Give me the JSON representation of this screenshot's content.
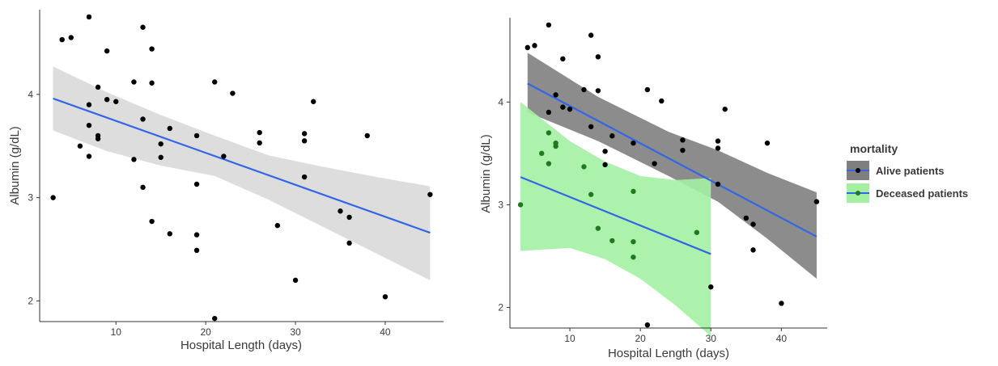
{
  "chart_data": [
    {
      "type": "scatter",
      "title": "",
      "xlabel": "Hospital Length (days)",
      "ylabel": "Albumin (g/dL)",
      "xlim": [
        1.5,
        46.5
      ],
      "ylim": [
        1.8,
        4.82
      ],
      "xticks": [
        10,
        20,
        30,
        40
      ],
      "yticks": [
        2,
        3,
        4
      ],
      "grid": false,
      "points": [
        [
          3,
          3.0
        ],
        [
          4,
          4.53
        ],
        [
          5,
          4.55
        ],
        [
          6,
          3.5
        ],
        [
          7,
          4.75
        ],
        [
          7,
          3.9
        ],
        [
          7,
          3.7
        ],
        [
          7,
          3.4
        ],
        [
          8,
          4.07
        ],
        [
          8,
          3.6
        ],
        [
          8,
          3.57
        ],
        [
          9,
          4.42
        ],
        [
          9,
          3.95
        ],
        [
          10,
          3.93
        ],
        [
          12,
          4.12
        ],
        [
          12,
          3.37
        ],
        [
          13,
          4.65
        ],
        [
          13,
          3.76
        ],
        [
          13,
          3.1
        ],
        [
          14,
          4.44
        ],
        [
          14,
          4.11
        ],
        [
          14,
          2.77
        ],
        [
          15,
          3.52
        ],
        [
          15,
          3.39
        ],
        [
          16,
          3.67
        ],
        [
          16,
          2.65
        ],
        [
          19,
          3.6
        ],
        [
          19,
          3.13
        ],
        [
          19,
          2.64
        ],
        [
          19,
          2.49
        ],
        [
          21,
          4.12
        ],
        [
          21,
          1.83
        ],
        [
          22,
          3.4
        ],
        [
          23,
          4.01
        ],
        [
          26,
          3.63
        ],
        [
          26,
          3.53
        ],
        [
          28,
          2.73
        ],
        [
          30,
          2.2
        ],
        [
          31,
          3.62
        ],
        [
          31,
          3.55
        ],
        [
          31,
          3.2
        ],
        [
          32,
          3.93
        ],
        [
          35,
          2.87
        ],
        [
          36,
          2.81
        ],
        [
          36,
          2.56
        ],
        [
          38,
          3.6
        ],
        [
          40,
          2.04
        ],
        [
          45,
          3.03
        ]
      ],
      "fit": {
        "x": [
          3,
          45
        ],
        "y": [
          3.96,
          2.66
        ],
        "ci_lower": [
          3.65,
          3.45,
          3.31,
          3.21,
          2.98,
          2.72,
          2.46,
          2.2
        ],
        "ci_upper": [
          4.27,
          4.02,
          3.8,
          3.6,
          3.41,
          3.3,
          3.2,
          3.11
        ],
        "ci_x": [
          3,
          9,
          15,
          21,
          27,
          33,
          39,
          45
        ],
        "line_color": "#3366e6",
        "band_color": "#d9d9d9"
      },
      "point_color": "#000000"
    },
    {
      "type": "scatter",
      "title": "",
      "xlabel": "Hospital Length (days)",
      "ylabel": "Albumin (g/dL)",
      "xlim": [
        1.5,
        46.5
      ],
      "ylim": [
        1.8,
        4.82
      ],
      "xticks": [
        10,
        20,
        30,
        40
      ],
      "yticks": [
        2,
        3,
        4
      ],
      "grid": false,
      "legend": {
        "title": "mortality",
        "placement": "right",
        "entries": [
          "Alive patients",
          "Deceased patients"
        ]
      },
      "series": [
        {
          "name": "Alive patients",
          "color": "#000000",
          "band_color": "#7f7f7f",
          "line_color": "#3366e6",
          "points": [
            [
              4,
              4.53
            ],
            [
              5,
              4.55
            ],
            [
              7,
              4.75
            ],
            [
              7,
              3.9
            ],
            [
              8,
              4.07
            ],
            [
              9,
              4.42
            ],
            [
              9,
              3.95
            ],
            [
              10,
              3.93
            ],
            [
              12,
              4.12
            ],
            [
              13,
              4.65
            ],
            [
              13,
              3.76
            ],
            [
              14,
              4.44
            ],
            [
              14,
              4.11
            ],
            [
              15,
              3.52
            ],
            [
              15,
              3.39
            ],
            [
              16,
              3.67
            ],
            [
              19,
              3.6
            ],
            [
              21,
              4.12
            ],
            [
              21,
              1.83
            ],
            [
              22,
              3.4
            ],
            [
              23,
              4.01
            ],
            [
              26,
              3.63
            ],
            [
              26,
              3.53
            ],
            [
              30,
              2.2
            ],
            [
              31,
              3.62
            ],
            [
              31,
              3.55
            ],
            [
              31,
              3.2
            ],
            [
              32,
              3.93
            ],
            [
              35,
              2.87
            ],
            [
              36,
              2.81
            ],
            [
              36,
              2.56
            ],
            [
              38,
              3.6
            ],
            [
              40,
              2.04
            ],
            [
              45,
              3.03
            ]
          ],
          "fit": {
            "x": [
              4,
              45
            ],
            "y": [
              4.18,
              2.69
            ],
            "ci_x": [
              4,
              14,
              24,
              31,
              38,
              45
            ],
            "ci_lower": [
              3.9,
              3.62,
              3.28,
              3.03,
              2.67,
              2.28
            ],
            "ci_upper": [
              4.48,
              4.05,
              3.71,
              3.53,
              3.31,
              3.12
            ]
          }
        },
        {
          "name": "Deceased patients",
          "color": "#1f7a1f",
          "band_color": "#a3f0a3",
          "line_color": "#3366e6",
          "points": [
            [
              3,
              3.0
            ],
            [
              6,
              3.5
            ],
            [
              7,
              3.7
            ],
            [
              7,
              3.4
            ],
            [
              8,
              3.6
            ],
            [
              8,
              3.57
            ],
            [
              12,
              3.37
            ],
            [
              13,
              3.1
            ],
            [
              14,
              2.77
            ],
            [
              16,
              2.65
            ],
            [
              19,
              3.13
            ],
            [
              19,
              2.64
            ],
            [
              19,
              2.49
            ],
            [
              28,
              2.73
            ]
          ],
          "fit": {
            "x": [
              3,
              30
            ],
            "y": [
              3.27,
              2.52
            ],
            "ci_x": [
              3,
              10,
              15,
              20,
              25,
              30
            ],
            "ci_lower": [
              2.55,
              2.58,
              2.47,
              2.28,
              2.02,
              1.72
            ],
            "ci_upper": [
              4.0,
              3.62,
              3.42,
              3.28,
              3.24,
              3.26
            ]
          }
        }
      ]
    }
  ]
}
